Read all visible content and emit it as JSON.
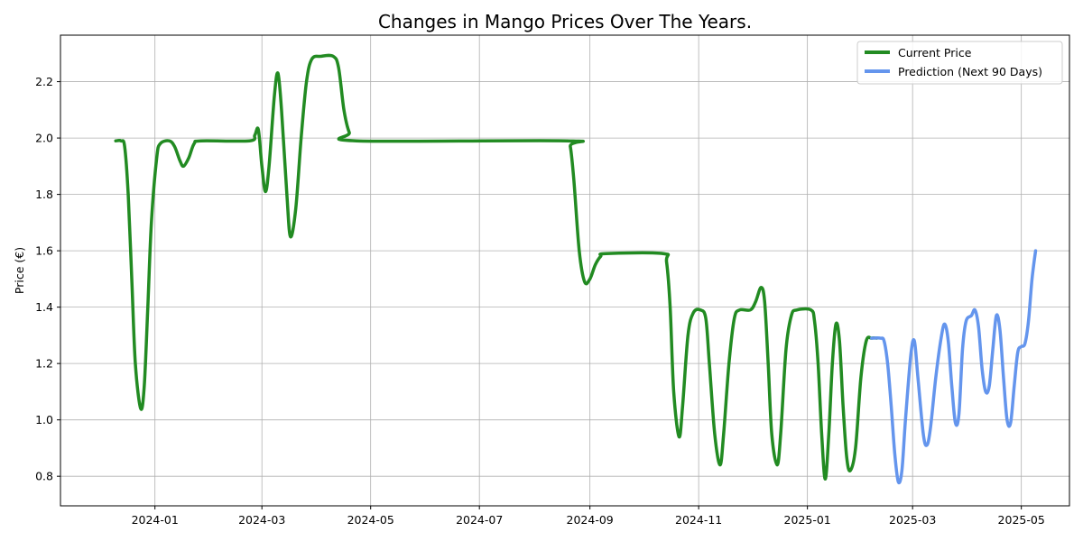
{
  "chart_data": {
    "type": "line",
    "title": "Changes in Mango Prices Over The Years.",
    "xlabel": "",
    "ylabel": "Price (€)",
    "xlim": [
      "2023-11-09",
      "2025-05-28"
    ],
    "ylim": [
      0.695,
      2.365
    ],
    "x_ticks": [
      "2024-01-01",
      "2024-03-01",
      "2024-05-01",
      "2024-07-01",
      "2024-09-01",
      "2024-11-01",
      "2025-01-01",
      "2025-03-01",
      "2025-05-01"
    ],
    "x_tick_labels": [
      "2024-01",
      "2024-03",
      "2024-05",
      "2024-07",
      "2024-09",
      "2024-11",
      "2025-01",
      "2025-03",
      "2025-05"
    ],
    "y_ticks": [
      0.8,
      1.0,
      1.2,
      1.4,
      1.6,
      1.8,
      2.0,
      2.2
    ],
    "y_tick_labels": [
      "0.8",
      "1.0",
      "1.2",
      "1.4",
      "1.6",
      "1.8",
      "2.0",
      "2.2"
    ],
    "grid": true,
    "legend_position": "top-right",
    "series": [
      {
        "name": "Current Price",
        "color": "#228b22",
        "points": [
          [
            "2023-12-10",
            1.99
          ],
          [
            "2023-12-13",
            1.99
          ],
          [
            "2023-12-15",
            1.97
          ],
          [
            "2023-12-17",
            1.8
          ],
          [
            "2023-12-19",
            1.5
          ],
          [
            "2023-12-21",
            1.2
          ],
          [
            "2023-12-24",
            1.04
          ],
          [
            "2023-12-26",
            1.12
          ],
          [
            "2023-12-28",
            1.4
          ],
          [
            "2023-12-30",
            1.7
          ],
          [
            "2024-01-02",
            1.93
          ],
          [
            "2024-01-04",
            1.98
          ],
          [
            "2024-01-09",
            1.99
          ],
          [
            "2024-01-12",
            1.97
          ],
          [
            "2024-01-15",
            1.92
          ],
          [
            "2024-01-17",
            1.9
          ],
          [
            "2024-01-20",
            1.93
          ],
          [
            "2024-01-23",
            1.98
          ],
          [
            "2024-01-27",
            1.99
          ],
          [
            "2024-02-23",
            1.99
          ],
          [
            "2024-02-26",
            2.01
          ],
          [
            "2024-02-28",
            2.03
          ],
          [
            "2024-03-01",
            1.9
          ],
          [
            "2024-03-03",
            1.81
          ],
          [
            "2024-03-05",
            1.9
          ],
          [
            "2024-03-08",
            2.15
          ],
          [
            "2024-03-10",
            2.23
          ],
          [
            "2024-03-12",
            2.1
          ],
          [
            "2024-03-15",
            1.8
          ],
          [
            "2024-03-17",
            1.65
          ],
          [
            "2024-03-20",
            1.75
          ],
          [
            "2024-03-23",
            2.0
          ],
          [
            "2024-03-26",
            2.2
          ],
          [
            "2024-03-29",
            2.28
          ],
          [
            "2024-04-03",
            2.29
          ],
          [
            "2024-04-10",
            2.29
          ],
          [
            "2024-04-13",
            2.25
          ],
          [
            "2024-04-16",
            2.1
          ],
          [
            "2024-04-19",
            2.02
          ],
          [
            "2024-04-23",
            1.99
          ],
          [
            "2024-08-19",
            1.99
          ],
          [
            "2024-08-21",
            1.97
          ],
          [
            "2024-08-23",
            1.85
          ],
          [
            "2024-08-26",
            1.6
          ],
          [
            "2024-08-29",
            1.49
          ],
          [
            "2024-09-01",
            1.5
          ],
          [
            "2024-09-04",
            1.55
          ],
          [
            "2024-09-07",
            1.58
          ],
          [
            "2024-09-10",
            1.59
          ],
          [
            "2024-10-12",
            1.59
          ],
          [
            "2024-10-14",
            1.56
          ],
          [
            "2024-10-16",
            1.4
          ],
          [
            "2024-10-18",
            1.1
          ],
          [
            "2024-10-21",
            0.94
          ],
          [
            "2024-10-23",
            1.05
          ],
          [
            "2024-10-26",
            1.3
          ],
          [
            "2024-10-29",
            1.38
          ],
          [
            "2024-11-02",
            1.39
          ],
          [
            "2024-11-05",
            1.36
          ],
          [
            "2024-11-07",
            1.2
          ],
          [
            "2024-11-10",
            0.95
          ],
          [
            "2024-11-13",
            0.84
          ],
          [
            "2024-11-15",
            0.95
          ],
          [
            "2024-11-18",
            1.2
          ],
          [
            "2024-11-21",
            1.36
          ],
          [
            "2024-11-24",
            1.39
          ],
          [
            "2024-11-30",
            1.39
          ],
          [
            "2024-12-03",
            1.42
          ],
          [
            "2024-12-06",
            1.47
          ],
          [
            "2024-12-08",
            1.42
          ],
          [
            "2024-12-10",
            1.2
          ],
          [
            "2024-12-12",
            0.95
          ],
          [
            "2024-12-15",
            0.84
          ],
          [
            "2024-12-17",
            0.95
          ],
          [
            "2024-12-20",
            1.25
          ],
          [
            "2024-12-23",
            1.37
          ],
          [
            "2024-12-26",
            1.39
          ],
          [
            "2025-01-03",
            1.39
          ],
          [
            "2025-01-05",
            1.35
          ],
          [
            "2025-01-07",
            1.2
          ],
          [
            "2025-01-09",
            0.95
          ],
          [
            "2025-01-11",
            0.79
          ],
          [
            "2025-01-13",
            0.95
          ],
          [
            "2025-01-15",
            1.2
          ],
          [
            "2025-01-17",
            1.34
          ],
          [
            "2025-01-19",
            1.28
          ],
          [
            "2025-01-21",
            1.05
          ],
          [
            "2025-01-23",
            0.87
          ],
          [
            "2025-01-25",
            0.82
          ],
          [
            "2025-01-28",
            0.9
          ],
          [
            "2025-01-31",
            1.15
          ],
          [
            "2025-02-03",
            1.28
          ],
          [
            "2025-02-06",
            1.29
          ],
          [
            "2025-02-09",
            1.29
          ]
        ]
      },
      {
        "name": "Prediction (Next 90 Days)",
        "color": "#6495ed",
        "points": [
          [
            "2025-02-06",
            1.29
          ],
          [
            "2025-02-11",
            1.29
          ],
          [
            "2025-02-13",
            1.28
          ],
          [
            "2025-02-15",
            1.2
          ],
          [
            "2025-02-17",
            1.05
          ],
          [
            "2025-02-19",
            0.88
          ],
          [
            "2025-02-21",
            0.78
          ],
          [
            "2025-02-23",
            0.82
          ],
          [
            "2025-02-25",
            1.0
          ],
          [
            "2025-02-28",
            1.23
          ],
          [
            "2025-03-02",
            1.28
          ],
          [
            "2025-03-04",
            1.15
          ],
          [
            "2025-03-07",
            0.95
          ],
          [
            "2025-03-09",
            0.91
          ],
          [
            "2025-03-11",
            0.97
          ],
          [
            "2025-03-14",
            1.15
          ],
          [
            "2025-03-17",
            1.29
          ],
          [
            "2025-03-19",
            1.34
          ],
          [
            "2025-03-21",
            1.28
          ],
          [
            "2025-03-23",
            1.12
          ],
          [
            "2025-03-25",
            0.99
          ],
          [
            "2025-03-27",
            1.02
          ],
          [
            "2025-03-29",
            1.25
          ],
          [
            "2025-03-31",
            1.35
          ],
          [
            "2025-04-03",
            1.37
          ],
          [
            "2025-04-05",
            1.39
          ],
          [
            "2025-04-07",
            1.33
          ],
          [
            "2025-04-09",
            1.18
          ],
          [
            "2025-04-11",
            1.1
          ],
          [
            "2025-04-13",
            1.12
          ],
          [
            "2025-04-15",
            1.25
          ],
          [
            "2025-04-17",
            1.37
          ],
          [
            "2025-04-19",
            1.32
          ],
          [
            "2025-04-21",
            1.15
          ],
          [
            "2025-04-23",
            1.0
          ],
          [
            "2025-04-25",
            0.99
          ],
          [
            "2025-04-27",
            1.12
          ],
          [
            "2025-04-29",
            1.24
          ],
          [
            "2025-05-01",
            1.26
          ],
          [
            "2025-05-03",
            1.27
          ],
          [
            "2025-05-05",
            1.35
          ],
          [
            "2025-05-07",
            1.5
          ],
          [
            "2025-05-09",
            1.6
          ]
        ]
      }
    ]
  }
}
